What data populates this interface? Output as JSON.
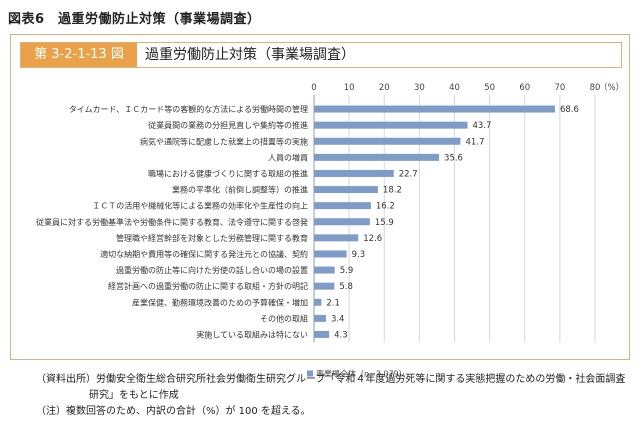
{
  "figure_label": "図表6　過重労働防止対策（事業場調査）",
  "header": {
    "number": "第 3-2-1-13 図",
    "title": "過重労働防止対策（事業場調査）"
  },
  "chart_data": {
    "type": "bar",
    "orientation": "horizontal",
    "categories": [
      "タイムカード、ＩＣカード等の客観的な方法による労働時間の管理",
      "従業員間の業務の分担見直しや集約等の推進",
      "病気や通院等に配慮した就業上の措置等の実施",
      "人員の増員",
      "職場における健康づくりに関する取組の推進",
      "業務の平準化（前倒し調整等）の推進",
      "ＩＣＴの活用や機械化等による業務の効率化や生産性の向上",
      "従業員に対する労働基準法や労働条件に関する教育、法令遵守に関する啓発",
      "管理職や経営幹部を対象とした労務管理に関する教育",
      "適切な納期や費用等の確保に関する発注元との協議、契約",
      "過重労働の防止等に向けた労使の話し合いの場の設置",
      "経営計画への過重労働の防止に関する取組・方針の明記",
      "産業保健、勤務環境改善のための予算確保・増加",
      "その他の取組",
      "実施している取組みは特にない"
    ],
    "series": [
      {
        "name": "事業場全体（n=3,079）",
        "values": [
          68.6,
          43.7,
          41.7,
          35.6,
          22.7,
          18.2,
          16.2,
          15.9,
          12.6,
          9.3,
          5.9,
          5.8,
          2.1,
          3.4,
          4.3
        ]
      }
    ],
    "value_labels": [
      "68.6",
      "43.7",
      "41.7",
      "35.6",
      "22.7",
      "18.2",
      "16.2",
      "15.9",
      "12.6",
      "9.3",
      "5.9",
      "5.8",
      "2.1",
      "3.4",
      "4.3"
    ],
    "xlim": [
      0,
      80
    ],
    "x_ticks": [
      "0",
      "10",
      "20",
      "30",
      "40",
      "50",
      "60",
      "70",
      "80"
    ],
    "x_tick_values": [
      0,
      10,
      20,
      30,
      40,
      50,
      60,
      70,
      80
    ],
    "unit_label": "（%）",
    "legend_label": "事業場全体（n=3,079）",
    "legend_position": "bottom",
    "grid": true,
    "bar_color": "#7f9cc9"
  },
  "notes": {
    "source_line1": "（資料出所）労働安全衛生総合研究所社会労働衛生研究グループ「令和４年度過労死等に関する実態把握のための労働・社会面調査",
    "source_line2": "研究」をもとに作成",
    "note": "（注）複数回答のため、内訳の合計（%）が 100 を超える。"
  },
  "colors": {
    "accent": "#e9a24a",
    "border": "#d9b27a",
    "bar": "#7f9cc9",
    "grid": "#d8d8d8"
  }
}
